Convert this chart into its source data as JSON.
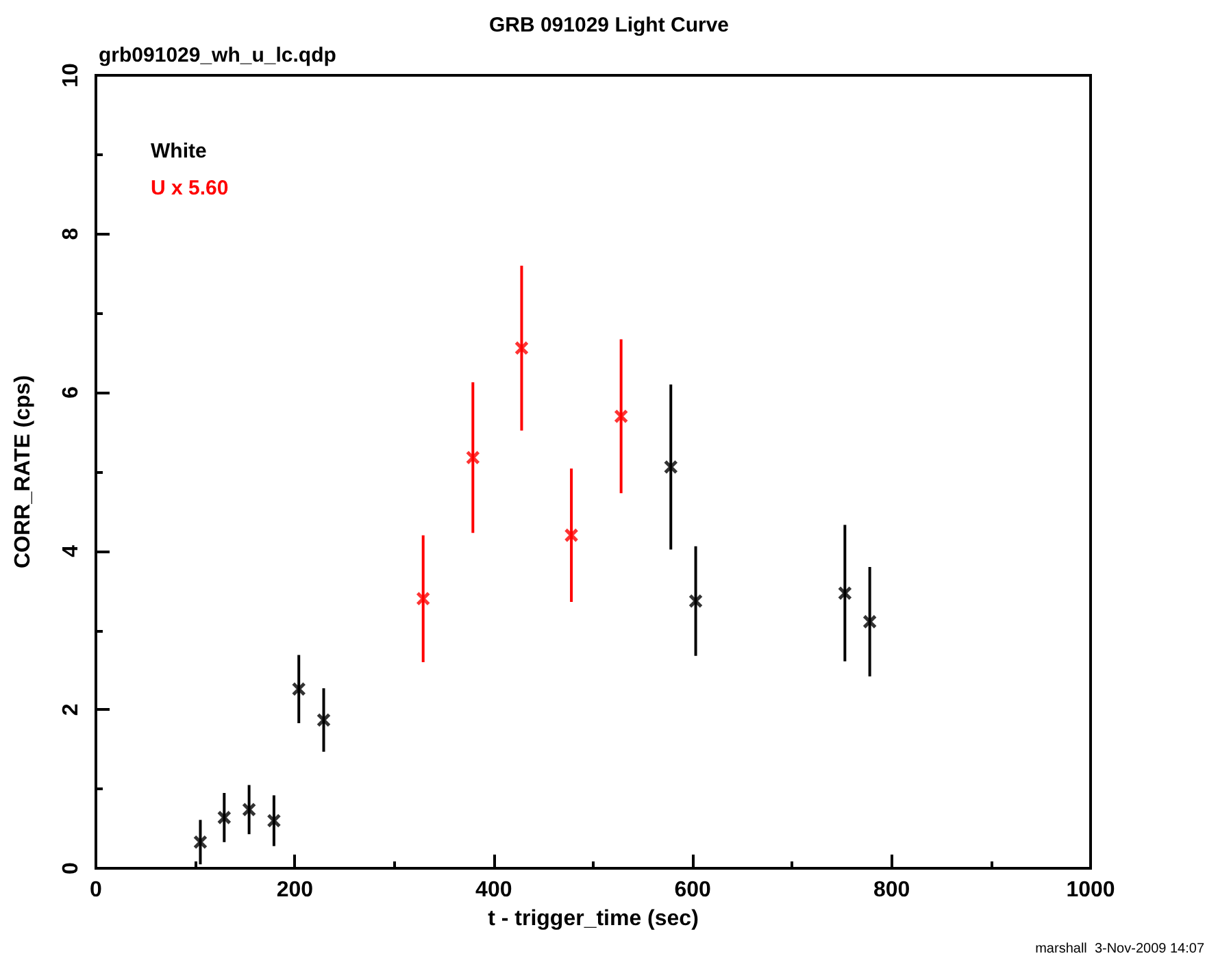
{
  "chart_data": {
    "type": "scatter",
    "title": "GRB 091029 Light Curve",
    "subtitle": "grb091029_wh_u_lc.qdp",
    "xlabel": "t - trigger_time (sec)",
    "ylabel": "CORR_RATE (cps)",
    "annotations": [
      "marshall  3-Nov-2009 14:07"
    ],
    "series": [
      {
        "name": "White",
        "color": "#000000",
        "x": [
          105,
          129,
          154,
          179,
          204,
          229,
          578,
          603,
          753,
          778
        ],
        "values": [
          0.33,
          0.64,
          0.74,
          0.6,
          2.26,
          1.87,
          5.06,
          3.37,
          3.47,
          3.11
        ],
        "errors": [
          0.28,
          0.31,
          0.31,
          0.32,
          0.43,
          0.4,
          1.04,
          0.69,
          0.86,
          0.69
        ]
      },
      {
        "name": "U x 5.60",
        "color": "#ff0000",
        "x": [
          329,
          379,
          428,
          478,
          528
        ],
        "values": [
          3.4,
          5.18,
          6.56,
          4.2,
          5.7
        ],
        "errors": [
          0.8,
          0.95,
          1.04,
          0.84,
          0.97
        ]
      }
    ],
    "xlim": [
      0,
      1000
    ],
    "xticks": [
      0,
      200,
      400,
      600,
      800,
      1000
    ],
    "ylim": [
      0,
      10
    ],
    "yticks": [
      0,
      2,
      4,
      6,
      8,
      10
    ],
    "grid": false,
    "legend": "top left",
    "marker": "cross"
  }
}
